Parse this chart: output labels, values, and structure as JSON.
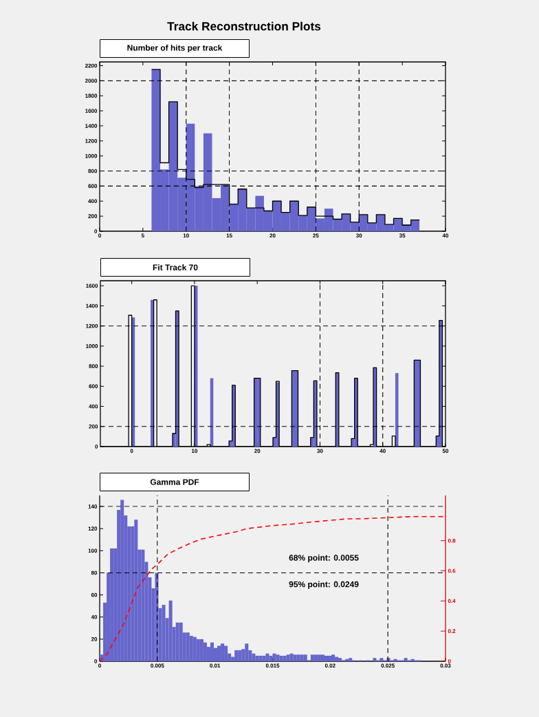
{
  "chart_data": [
    {
      "type": "histogram",
      "title": "Track Reconstruction Plots",
      "subtitle": "Number of hits per track",
      "bins": [
        6,
        7,
        8,
        9,
        10,
        11,
        12,
        13,
        14,
        15,
        16,
        17,
        18,
        19,
        20,
        21,
        22,
        23,
        24,
        25,
        26,
        27,
        28,
        29,
        30,
        31,
        32,
        33,
        34,
        35,
        36,
        37
      ],
      "series": [
        {
          "color": "#6666cc",
          "values": [
            2150,
            820,
            1720,
            710,
            1430,
            600,
            1300,
            440,
            620,
            360,
            560,
            310,
            470,
            270,
            400,
            250,
            400,
            210,
            320,
            170,
            300,
            160,
            230,
            120,
            220,
            110,
            220,
            90,
            170,
            90,
            150
          ]
        },
        {
          "color": "#000000",
          "values": [
            2150,
            910,
            1720,
            820,
            690,
            580,
            620,
            620,
            620,
            360,
            560,
            310,
            310,
            270,
            400,
            250,
            400,
            210,
            320,
            200,
            200,
            160,
            230,
            120,
            220,
            110,
            220,
            90,
            170,
            80,
            150
          ]
        }
      ],
      "xlim": [
        0,
        40
      ],
      "ylim": [
        0,
        2250
      ],
      "xticks": [
        0,
        5,
        10,
        15,
        20,
        25,
        30,
        35,
        40
      ],
      "yticks": [
        0,
        200,
        400,
        600,
        800,
        1000,
        1200,
        1400,
        1600,
        1800,
        2000,
        2200
      ],
      "ref_lines": [
        {
          "axis": "y",
          "value": 2000,
          "color": "#000000",
          "line_style": "dashed"
        },
        {
          "axis": "y",
          "value": 800,
          "color": "#000000",
          "line_style": "dashed"
        },
        {
          "axis": "y",
          "value": 600,
          "color": "#000000",
          "line_style": "dashed"
        },
        {
          "axis": "x",
          "value": 10,
          "color": "#000000",
          "line_style": "dashed"
        },
        {
          "axis": "x",
          "value": 15,
          "color": "#000000",
          "line_style": "dashed"
        },
        {
          "axis": "x",
          "value": 25,
          "color": "#000000",
          "line_style": "dashed"
        },
        {
          "axis": "x",
          "value": 30,
          "color": "#000000",
          "line_style": "dashed"
        }
      ]
    },
    {
      "type": "histogram",
      "title": "Fit Track 70",
      "bins": [
        -5,
        -0.5,
        0,
        0.5,
        3,
        3.5,
        4,
        6.5,
        7,
        7.5,
        9.5,
        10,
        10.5,
        12,
        12.5,
        13,
        15.5,
        16,
        16.5,
        19.5,
        20,
        20.5,
        22.5,
        23,
        23.5,
        25.5,
        26,
        26.5,
        28.5,
        29,
        29.5,
        32,
        32.5,
        33,
        35,
        35.5,
        36,
        38,
        38.5,
        39,
        41.5,
        42,
        42.5,
        45,
        45.5,
        46,
        48.5,
        49,
        49.5,
        50
      ],
      "series": [
        {
          "color": "#6666cc",
          "values": [
            0,
            0,
            1285,
            0,
            1460,
            0,
            0,
            130,
            1350,
            0,
            0,
            1600,
            0,
            0,
            680,
            0,
            55,
            610,
            0,
            680,
            680,
            0,
            90,
            640,
            0,
            755,
            755,
            0,
            90,
            655,
            0,
            0,
            735,
            0,
            80,
            680,
            0,
            0,
            785,
            0,
            0,
            730,
            0,
            860,
            860,
            0,
            105,
            1255,
            0
          ]
        },
        {
          "color": "#000000",
          "values": [
            0,
            1306,
            0,
            0,
            0,
            1460,
            0,
            130,
            1350,
            0,
            1600,
            0,
            0,
            20,
            0,
            0,
            55,
            610,
            0,
            680,
            680,
            0,
            90,
            650,
            0,
            755,
            755,
            0,
            90,
            655,
            0,
            0,
            735,
            0,
            80,
            680,
            0,
            20,
            785,
            0,
            105,
            0,
            0,
            860,
            860,
            0,
            105,
            1255,
            0
          ]
        }
      ],
      "xlim": [
        -5,
        50
      ],
      "ylim": [
        0,
        1650
      ],
      "xticks": [
        0,
        10,
        20,
        30,
        40,
        50
      ],
      "yticks": [
        0,
        200,
        400,
        600,
        800,
        1000,
        1200,
        1400,
        1600
      ],
      "ref_lines": [
        {
          "axis": "y",
          "value": 200,
          "color": "#000000",
          "line_style": "dashed"
        },
        {
          "axis": "y",
          "value": 1200,
          "color": "#000000",
          "line_style": "dashed"
        },
        {
          "axis": "x",
          "value": 30,
          "color": "#000000",
          "line_style": "dashed"
        },
        {
          "axis": "x",
          "value": 40,
          "color": "#000000",
          "line_style": "dashed"
        }
      ]
    },
    {
      "type": "histogram",
      "title": "Gamma PDF",
      "bins": [
        0,
        0.0003,
        0.0006,
        0.0009,
        0.0012,
        0.0015,
        0.0018,
        0.0021,
        0.0024,
        0.0027,
        0.003,
        0.0033,
        0.0036,
        0.0039,
        0.0042,
        0.0045,
        0.0048,
        0.0051,
        0.0054,
        0.0057,
        0.006,
        0.0063,
        0.0066,
        0.0069,
        0.0072,
        0.0075,
        0.0078,
        0.0081,
        0.0084,
        0.0087,
        0.009,
        0.0093,
        0.0096,
        0.0099,
        0.0102,
        0.0105,
        0.0108,
        0.0111,
        0.0114,
        0.0117,
        0.012,
        0.0123,
        0.0126,
        0.0129,
        0.0132,
        0.0135,
        0.0138,
        0.0141,
        0.0144,
        0.0147,
        0.015,
        0.0153,
        0.0156,
        0.0159,
        0.0162,
        0.0165,
        0.0168,
        0.0171,
        0.0174,
        0.0177,
        0.018,
        0.0183,
        0.0186,
        0.0189,
        0.0192,
        0.0195,
        0.0198,
        0.0201,
        0.0204,
        0.0207,
        0.021,
        0.0213,
        0.0216,
        0.0219,
        0.0222,
        0.0225,
        0.0228,
        0.0231,
        0.0234,
        0.0237,
        0.024,
        0.0243,
        0.0246,
        0.0249,
        0.0252,
        0.0255,
        0.0258,
        0.0261,
        0.0264,
        0.0267,
        0.027,
        0.0273,
        0.0276,
        0.0279,
        0.0282,
        0.0285,
        0.0288,
        0.0291,
        0.0294,
        0.0297,
        0.03
      ],
      "series": [
        {
          "color": "#6666cc",
          "values": [
            6,
            53,
            80,
            102,
            102,
            137,
            146,
            132,
            122,
            122,
            128,
            101,
            101,
            90,
            76,
            66,
            80,
            48,
            51,
            39,
            55,
            31,
            35,
            35,
            26,
            26,
            23,
            22,
            20,
            20,
            17,
            13,
            17,
            12,
            14,
            16,
            14,
            7,
            4,
            10,
            10,
            11,
            16,
            10,
            7,
            5,
            5,
            5,
            7,
            5,
            7,
            6,
            5,
            5,
            6,
            7,
            6,
            6,
            6,
            6,
            1,
            6,
            6,
            6,
            6,
            5,
            5,
            6,
            4,
            3,
            1,
            2,
            3,
            1,
            0,
            1,
            0,
            1,
            0,
            3,
            1,
            3,
            1,
            3,
            1,
            2,
            1,
            1,
            3,
            1,
            2,
            1,
            1,
            0,
            0,
            0,
            0,
            0,
            0,
            0
          ]
        },
        {
          "type": "line",
          "axis": "y2",
          "color": "#ff0000",
          "line_style": "dashed",
          "x": [
            0,
            0.00065,
            0.0021,
            0.0028,
            0.0033,
            0.0039,
            0.0045,
            0.0051,
            0.0059,
            0.0069,
            0.0078,
            0.0088,
            0.01,
            0.0119,
            0.0128,
            0.015,
            0.0167,
            0.0193,
            0.0215,
            0.0227,
            0.0272,
            0.03
          ],
          "values": [
            0,
            0.05,
            0.25,
            0.39,
            0.49,
            0.55,
            0.61,
            0.65,
            0.71,
            0.75,
            0.78,
            0.81,
            0.83,
            0.86,
            0.88,
            0.9,
            0.91,
            0.93,
            0.945,
            0.945,
            0.96,
            0.96
          ]
        }
      ],
      "xlim": [
        0,
        0.03
      ],
      "ylim": [
        0,
        150
      ],
      "y2lim": [
        0,
        1.1
      ],
      "xticks": [
        0,
        0.005,
        0.01,
        0.015,
        0.02,
        0.025,
        0.03
      ],
      "yticks": [
        0,
        20,
        40,
        60,
        80,
        100,
        120,
        140
      ],
      "y2ticks": [
        0,
        0.2,
        0.4,
        0.6,
        0.8
      ],
      "annotations": [
        "68% point: 0.0055",
        "95% point: 0.0249"
      ],
      "ref_lines": [
        {
          "axis": "y",
          "value": 140,
          "color": "#000000",
          "line_style": "dashed"
        },
        {
          "axis": "y",
          "value": 80,
          "color": "#000000",
          "line_style": "dashed"
        },
        {
          "axis": "x",
          "value": 0.005,
          "color": "#000000",
          "line_style": "dashed"
        },
        {
          "axis": "x",
          "value": 0.025,
          "color": "#000000",
          "line_style": "dashed"
        }
      ]
    }
  ]
}
